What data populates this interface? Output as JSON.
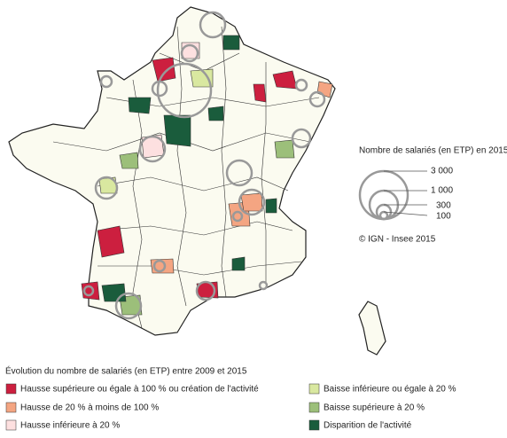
{
  "size_legend": {
    "title": "Nombre de salariés (en ETP) en 2015",
    "labels": [
      "3 000",
      "1 000",
      "300",
      "100"
    ]
  },
  "source": "© IGN - Insee 2015",
  "color_legend": {
    "title": "Évolution du nombre de salariés (en ETP) entre 2009 et 2015",
    "items": [
      "Hausse supérieure ou égale à 100 % ou création de l'activité",
      "Hausse de 20 % à moins de 100 %",
      "Hausse inférieure à 20 %",
      "Baisse inférieure ou égale à 20 %",
      "Baisse supérieure à 20 %",
      "Disparition de l'activité"
    ]
  }
}
